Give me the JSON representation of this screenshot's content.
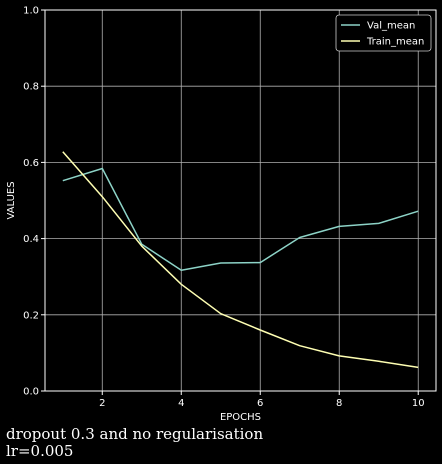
{
  "chart_data": {
    "type": "line",
    "xlabel": "EPOCHS",
    "ylabel": "VALUES",
    "xlim": [
      0.55,
      10.45
    ],
    "ylim": [
      0,
      1
    ],
    "xticks": [
      2,
      4,
      6,
      8,
      10
    ],
    "yticks": [
      0.0,
      0.2,
      0.4,
      0.6,
      0.8,
      1.0
    ],
    "grid": true,
    "legend_position": "top-right",
    "x": [
      1,
      2,
      3,
      4,
      5,
      6,
      7,
      8,
      9,
      10
    ],
    "series": [
      {
        "name": "Val_mean",
        "color": "#8dd3c7",
        "values": [
          0.552,
          0.584,
          0.385,
          0.317,
          0.336,
          0.337,
          0.403,
          0.432,
          0.44,
          0.472
        ]
      },
      {
        "name": "Train_mean",
        "color": "#ffffb3",
        "values": [
          0.628,
          0.51,
          0.38,
          0.28,
          0.203,
          0.16,
          0.119,
          0.092,
          0.078,
          0.062
        ]
      }
    ]
  },
  "caption": {
    "line1": "dropout 0.3 and no regularisation",
    "line2": "lr=0.005"
  }
}
